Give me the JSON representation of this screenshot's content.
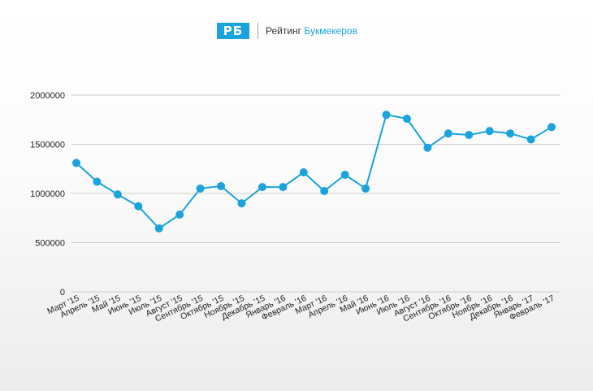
{
  "brand": {
    "logo_text": "РБ",
    "name_part1": "Рейтинг",
    "name_part2": "Букмекеров",
    "accent_color": "#1aa3dc"
  },
  "chart_data": {
    "type": "line",
    "title": "",
    "xlabel": "",
    "ylabel": "",
    "categories": [
      "Март '15",
      "Апрель '15",
      "Май '15",
      "Июнь '15",
      "Июль '15",
      "Август '15",
      "Сентябрь '15",
      "Октябрь '15",
      "Ноябрь '15",
      "Декабрь '15",
      "Январь '16",
      "Февраль '16",
      "Март '16",
      "Апрель '16",
      "Май '16",
      "Июнь '16",
      "Июль '16",
      "Август '16",
      "Сентябрь '16",
      "Октябрь '16",
      "Ноябрь '16",
      "Декабрь '16",
      "Январь '17",
      "Февраль '17"
    ],
    "series": [
      {
        "values": [
          1310000,
          1120000,
          990000,
          870000,
          645000,
          785000,
          1050000,
          1075000,
          900000,
          1065000,
          1065000,
          1215000,
          1025000,
          1190000,
          1050000,
          1800000,
          1760000,
          1465000,
          1610000,
          1595000,
          1635000,
          1610000,
          1550000,
          1675000
        ],
        "color": "#1aa3dc"
      }
    ],
    "yticks": [
      "0",
      "500000",
      "1000000",
      "1500000",
      "2000000"
    ],
    "ylim": [
      0,
      2000000
    ],
    "grid": true,
    "legend": "none"
  }
}
